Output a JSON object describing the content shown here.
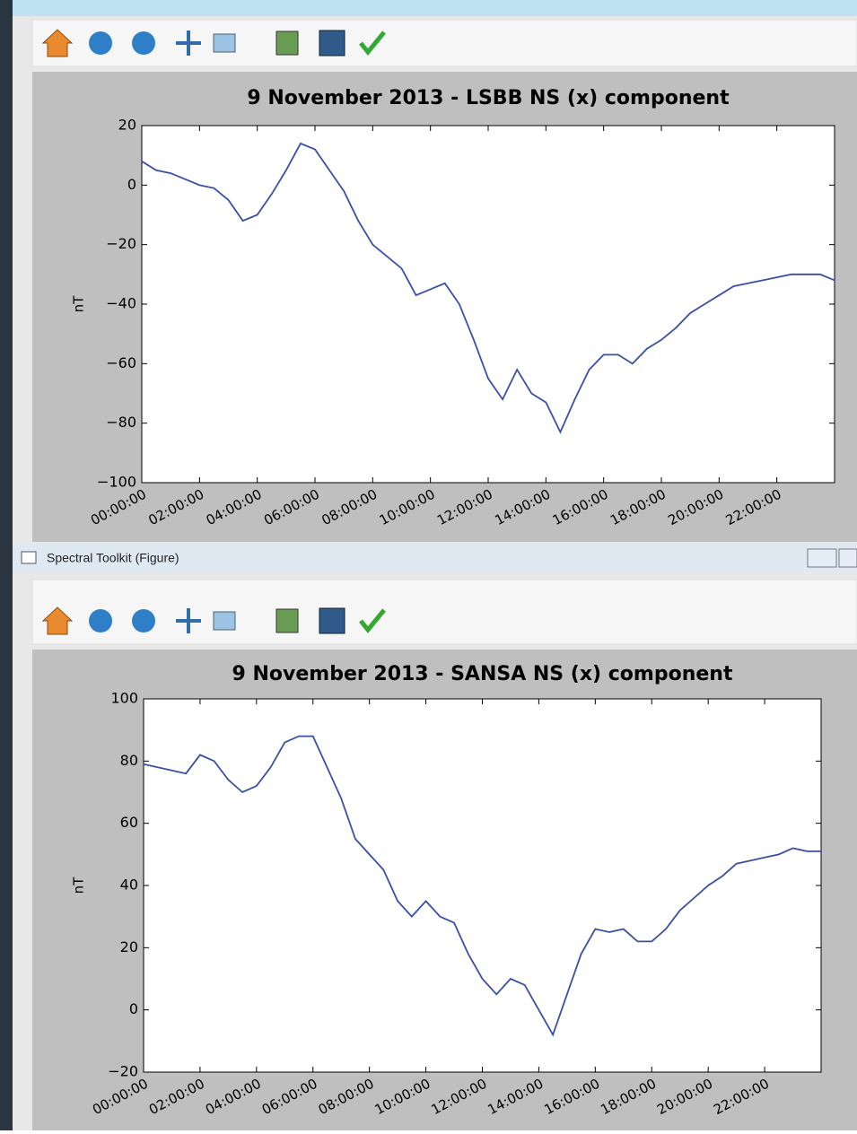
{
  "window": {
    "title": "Spectral Toolkit (Figure)"
  },
  "chart_data": [
    {
      "type": "line",
      "title": "9 November 2013 - LSBB NS (x) component",
      "y_label": "nT",
      "x": [
        0,
        0.5,
        1,
        1.5,
        2,
        2.5,
        3,
        3.5,
        4,
        4.5,
        5,
        5.5,
        6,
        6.5,
        7,
        7.5,
        8,
        8.5,
        9,
        9.5,
        10,
        10.5,
        11,
        11.5,
        12,
        12.5,
        13,
        13.5,
        14,
        14.5,
        15,
        15.5,
        16,
        16.5,
        17,
        17.5,
        18,
        18.5,
        19,
        19.5,
        20,
        20.5,
        21,
        21.5,
        22,
        22.5,
        23,
        23.5,
        24
      ],
      "series": [
        {
          "color": "#3b4fa6",
          "values": [
            8,
            5,
            4,
            2,
            0,
            -1,
            -5,
            -12,
            -10,
            -3,
            5,
            14,
            12,
            5,
            -2,
            -12,
            -20,
            -24,
            -28,
            -37,
            -35,
            -33,
            -40,
            -52,
            -65,
            -72,
            -62,
            -70,
            -73,
            -83,
            -72,
            -62,
            -57,
            -57,
            -60,
            -55,
            -52,
            -48,
            -43,
            -40,
            -37,
            -34,
            -33,
            -32,
            -31,
            -30,
            -30,
            -30,
            -32
          ]
        }
      ],
      "xlim": [
        0,
        24
      ],
      "xticks": [
        {
          "value": 0,
          "label": "00:00:00"
        },
        {
          "value": 2,
          "label": "02:00:00"
        },
        {
          "value": 4,
          "label": "04:00:00"
        },
        {
          "value": 6,
          "label": "06:00:00"
        },
        {
          "value": 8,
          "label": "08:00:00"
        },
        {
          "value": 10,
          "label": "10:00:00"
        },
        {
          "value": 12,
          "label": "12:00:00"
        },
        {
          "value": 14,
          "label": "14:00:00"
        },
        {
          "value": 16,
          "label": "16:00:00"
        },
        {
          "value": 18,
          "label": "18:00:00"
        },
        {
          "value": 20,
          "label": "20:00:00"
        },
        {
          "value": 22,
          "label": "22:00:00"
        }
      ],
      "ylim": [
        -100,
        20
      ],
      "yticks": [
        {
          "value": -100,
          "label": "−100"
        },
        {
          "value": -80,
          "label": "−80"
        },
        {
          "value": -60,
          "label": "−60"
        },
        {
          "value": -40,
          "label": "−40"
        },
        {
          "value": -20,
          "label": "−20"
        },
        0,
        20
      ]
    },
    {
      "type": "line",
      "title": "9 November 2013 - SANSA NS (x) component",
      "y_label": "nT",
      "x": [
        0,
        0.5,
        1,
        1.5,
        2,
        2.5,
        3,
        3.5,
        4,
        4.5,
        5,
        5.5,
        6,
        6.5,
        7,
        7.5,
        8,
        8.5,
        9,
        9.5,
        10,
        10.5,
        11,
        11.5,
        12,
        12.5,
        13,
        13.5,
        14,
        14.5,
        15,
        15.5,
        16,
        16.5,
        17,
        17.5,
        18,
        18.5,
        19,
        19.5,
        20,
        20.5,
        21,
        21.5,
        22,
        22.5,
        23,
        23.5,
        24
      ],
      "series": [
        {
          "color": "#3b4fa6",
          "values": [
            79,
            78,
            77,
            76,
            82,
            80,
            74,
            70,
            72,
            78,
            86,
            88,
            88,
            78,
            68,
            55,
            50,
            45,
            35,
            30,
            35,
            30,
            28,
            18,
            10,
            5,
            10,
            8,
            0,
            -8,
            5,
            18,
            26,
            25,
            26,
            22,
            22,
            26,
            32,
            36,
            40,
            43,
            47,
            48,
            49,
            50,
            52,
            51,
            51
          ]
        }
      ],
      "xlim": [
        0,
        24
      ],
      "xticks": [
        {
          "value": 0,
          "label": "00:00:00"
        },
        {
          "value": 2,
          "label": "02:00:00"
        },
        {
          "value": 4,
          "label": "04:00:00"
        },
        {
          "value": 6,
          "label": "06:00:00"
        },
        {
          "value": 8,
          "label": "08:00:00"
        },
        {
          "value": 10,
          "label": "10:00:00"
        },
        {
          "value": 12,
          "label": "12:00:00"
        },
        {
          "value": 14,
          "label": "14:00:00"
        },
        {
          "value": 16,
          "label": "16:00:00"
        },
        {
          "value": 18,
          "label": "18:00:00"
        },
        {
          "value": 20,
          "label": "20:00:00"
        },
        {
          "value": 22,
          "label": "22:00:00"
        }
      ],
      "ylim": [
        -20,
        100
      ],
      "yticks": [
        {
          "value": -20,
          "label": "−20"
        },
        0,
        20,
        40,
        60,
        80,
        100
      ]
    }
  ]
}
